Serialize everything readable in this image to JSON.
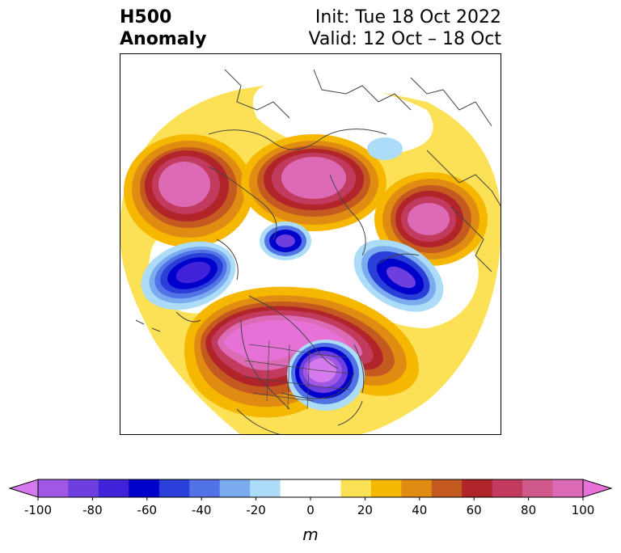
{
  "title": {
    "left_line1": "H500",
    "left_line2": "Anomaly",
    "right_line1": "Init: Tue 18 Oct 2022",
    "right_line2": "Valid: 12 Oct – 18 Oct"
  },
  "map": {
    "projection": "north-polar-stereographic",
    "field": "500 hPa geopotential height anomaly",
    "features": [
      {
        "sign": "positive",
        "region": "Gulf of Alaska / NE Pacific",
        "peak_m": 95
      },
      {
        "sign": "positive",
        "region": "Eastern Siberia / Arctic",
        "peak_m": 90
      },
      {
        "sign": "positive",
        "region": "Western Russia / Scandinavia",
        "peak_m": 95
      },
      {
        "sign": "positive",
        "region": "Central Canada / Greenland / North Atlantic",
        "peak_m": 100
      },
      {
        "sign": "negative",
        "region": "North Pacific / Aleutians",
        "peak_m": -70
      },
      {
        "sign": "negative",
        "region": "Bering Sea",
        "peak_m": -70
      },
      {
        "sign": "negative",
        "region": "Kara / Barents Sea",
        "peak_m": -75
      },
      {
        "sign": "negative",
        "region": "Central & Eastern United States",
        "peak_m": -95
      },
      {
        "sign": "negative",
        "region": "Central Asia",
        "peak_m": -20
      }
    ]
  },
  "colorbar": {
    "unit_label": "m",
    "ticks": [
      "-100",
      "-80",
      "-60",
      "-40",
      "-20",
      "0",
      "20",
      "40",
      "60",
      "80",
      "100"
    ],
    "extend": "both",
    "extend_min_color": "#d57aec",
    "extend_max_color": "#e672d8",
    "colors": [
      "#d57aec",
      "#a057e4",
      "#6e3ede",
      "#4023d8",
      "#0000cc",
      "#2a3ed8",
      "#5173e6",
      "#7bacef",
      "#acdcf8",
      "#ffffff",
      "#ffffff",
      "#fce055",
      "#f5b700",
      "#e08b12",
      "#c45a1f",
      "#b0242a",
      "#c23a5e",
      "#d05a8c",
      "#dc6ab5",
      "#e672d8"
    ]
  }
}
